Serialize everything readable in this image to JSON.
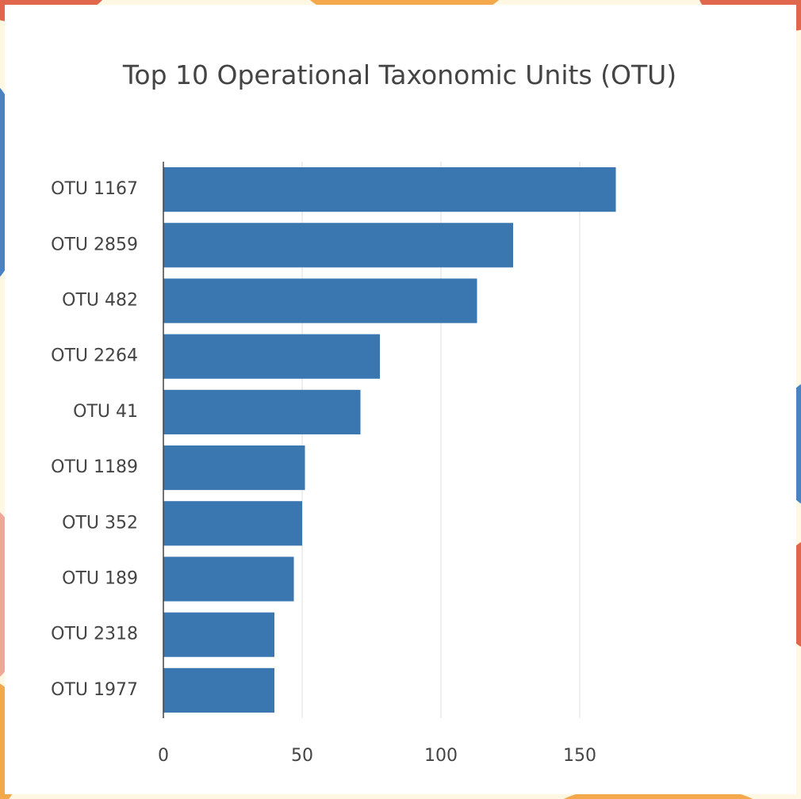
{
  "colors": {
    "bar": "#3a76b0",
    "grid": "#e8e8e8",
    "axis": "#444444",
    "text": "#444444",
    "panel": "#ffffff",
    "backdrop": "#fdf7e4",
    "accent_orange": "#f2a84b",
    "accent_blue": "#4a82c2",
    "accent_red": "#e0664c",
    "accent_pink": "#eea89a"
  },
  "chart_data": {
    "type": "bar",
    "orientation": "horizontal",
    "title": "Top 10 Operational Taxonomic Units (OTU)",
    "xlabel": "",
    "ylabel": "",
    "categories": [
      "OTU 1167",
      "OTU 2859",
      "OTU 482",
      "OTU 2264",
      "OTU 41",
      "OTU 1189",
      "OTU 352",
      "OTU 189",
      "OTU 2318",
      "OTU 1977"
    ],
    "values": [
      163,
      126,
      113,
      78,
      71,
      51,
      50,
      47,
      40,
      40
    ],
    "xlim": [
      0,
      200
    ],
    "xticks": [
      0,
      50,
      100,
      150
    ],
    "xtick_labels": [
      "0",
      "50",
      "100",
      "150"
    ],
    "grid": true,
    "legend": "none"
  }
}
